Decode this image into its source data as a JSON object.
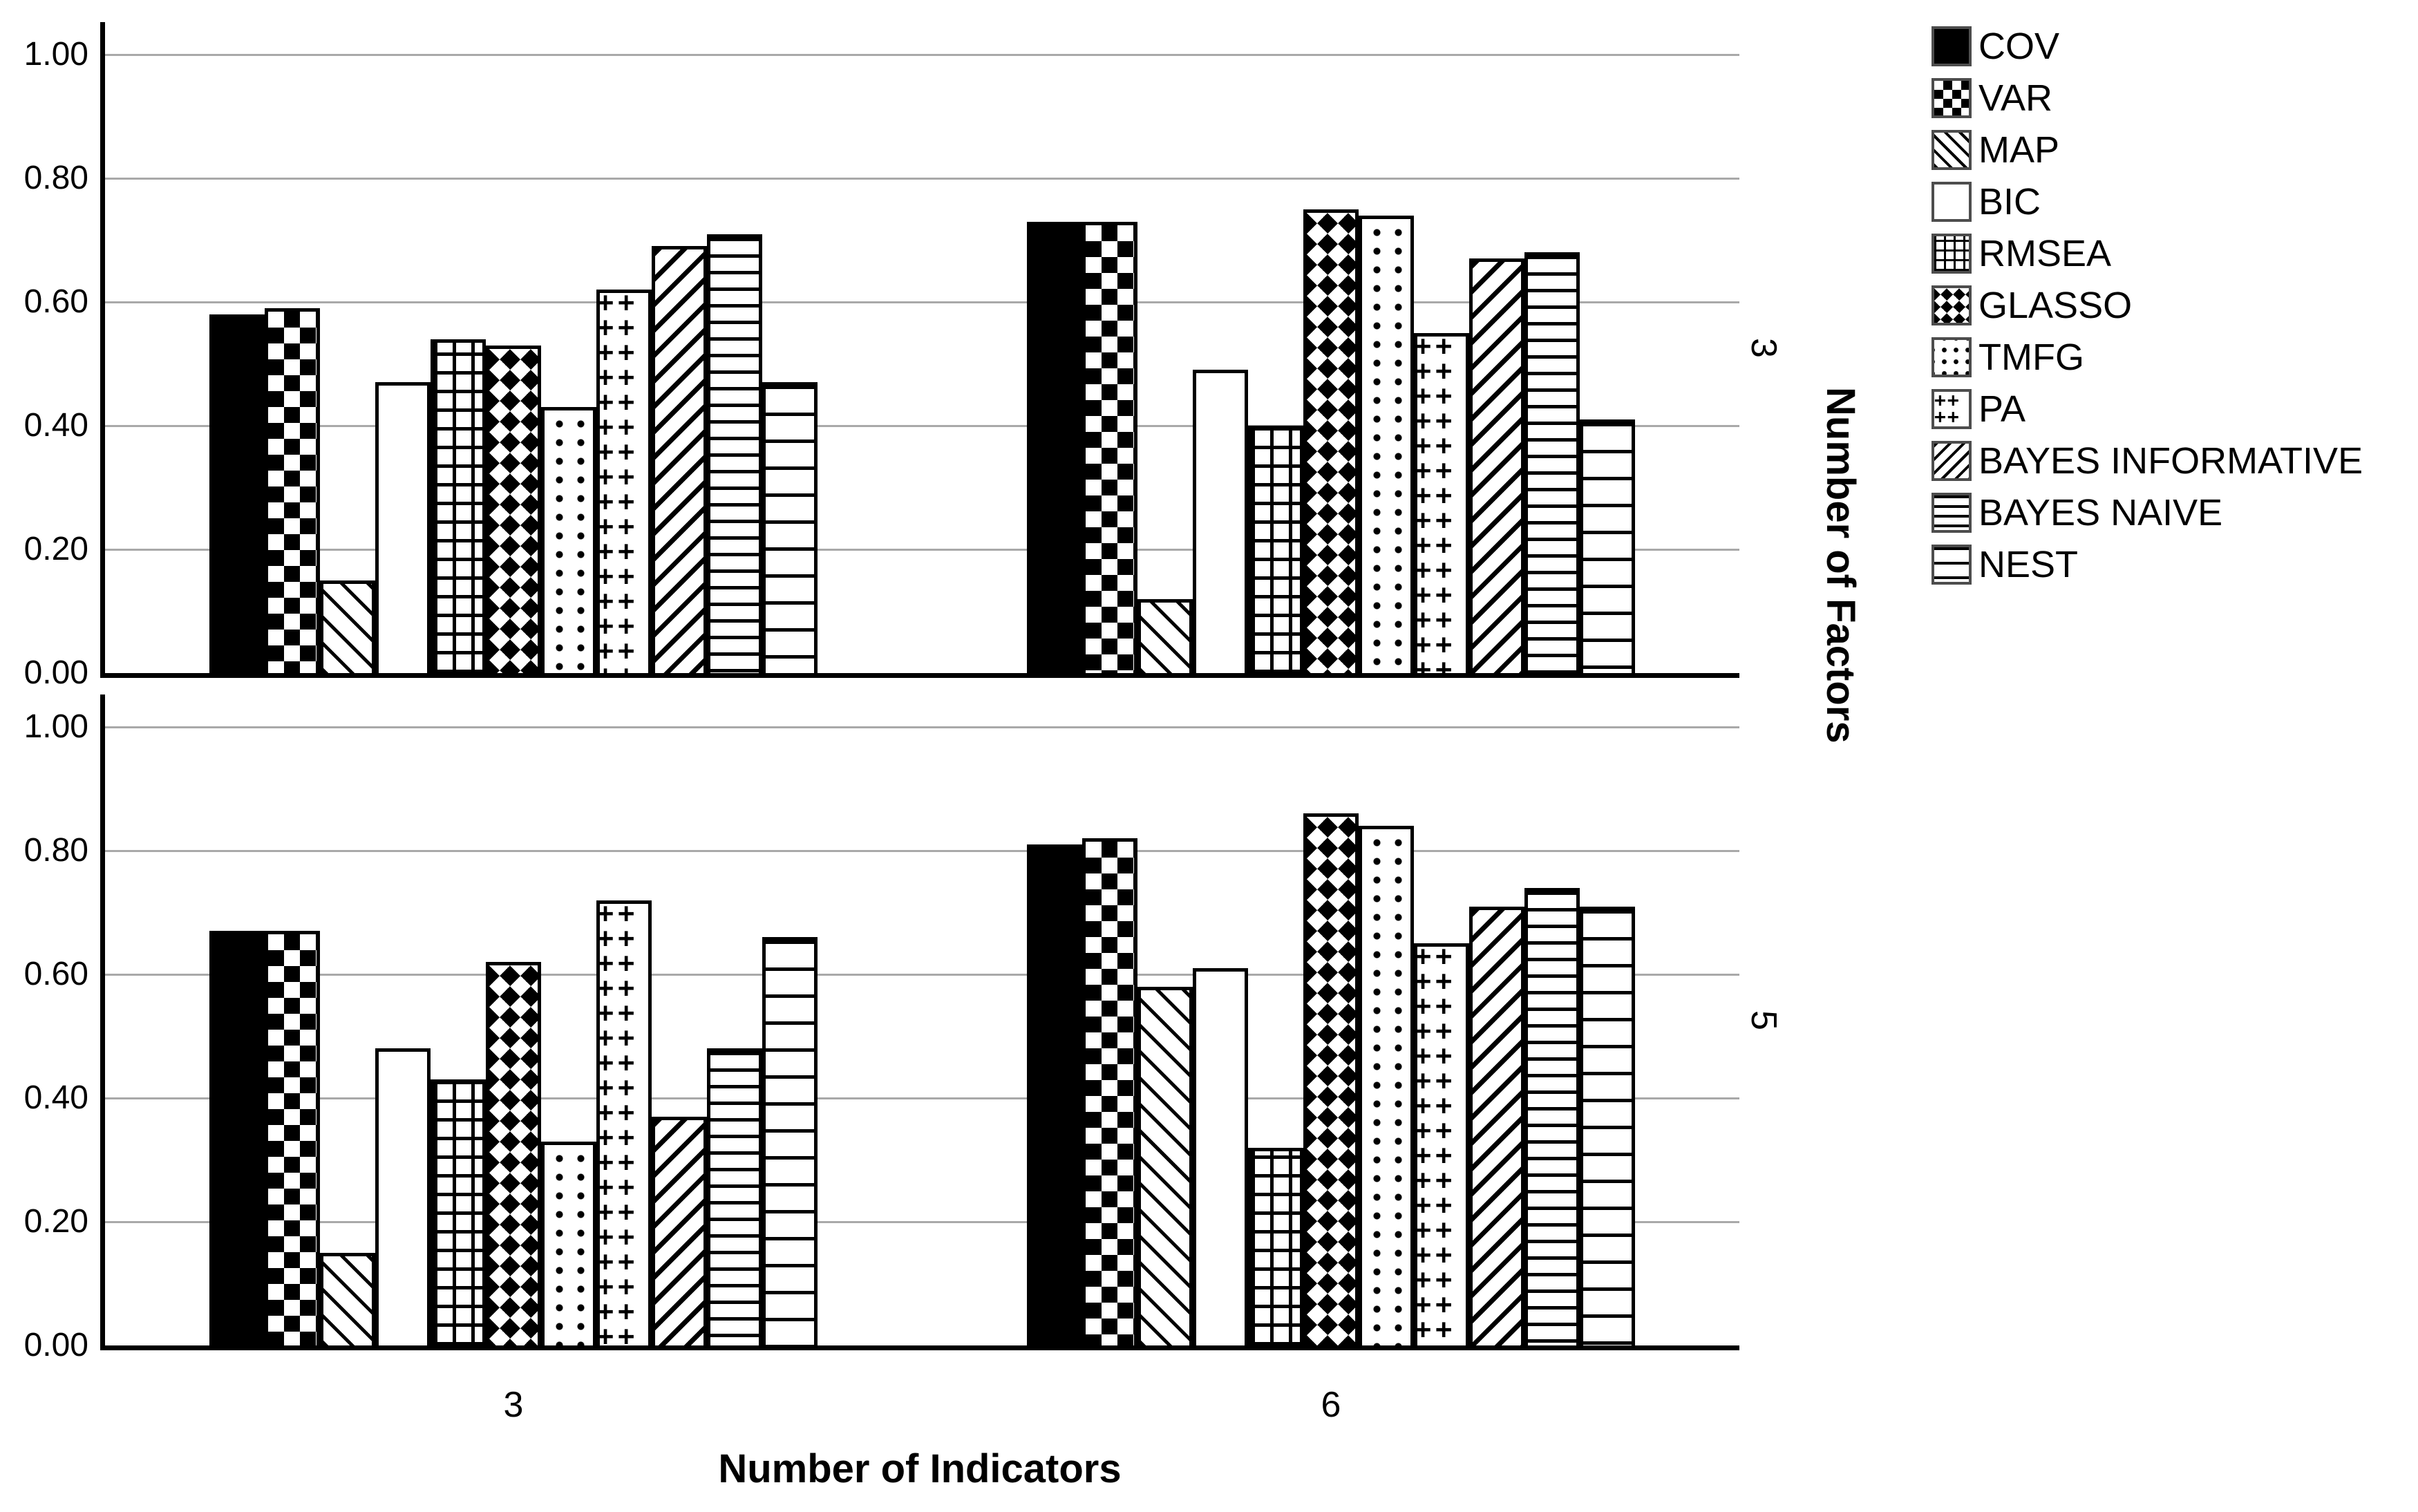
{
  "axes": {
    "y_ticks": [
      "1.00",
      "0.80",
      "0.60",
      "0.40",
      "0.20",
      "0.00"
    ],
    "x_categories": [
      "3",
      "6"
    ],
    "x_title": "Number of Indicators",
    "right_title": "Number of Factors",
    "facet_labels": [
      "3",
      "5"
    ]
  },
  "colors": {
    "foreground": "#000000",
    "background": "#ffffff",
    "gridline": "#a9a9a9"
  },
  "chart_data": {
    "type": "bar",
    "title": "",
    "xlabel": "Number of Indicators",
    "right_axis_label": "Number of Factors",
    "ylim": [
      0,
      1.05
    ],
    "yticks": [
      0,
      0.2,
      0.4,
      0.6,
      0.8,
      1.0
    ],
    "grid": true,
    "legend_position": "right",
    "x_categories": [
      "3",
      "6"
    ],
    "series": [
      {
        "name": "COV",
        "pattern": "solid"
      },
      {
        "name": "VAR",
        "pattern": "checker"
      },
      {
        "name": "MAP",
        "pattern": "diag-down"
      },
      {
        "name": "BIC",
        "pattern": "plain"
      },
      {
        "name": "RMSEA",
        "pattern": "grid"
      },
      {
        "name": "GLASSO",
        "pattern": "diamond"
      },
      {
        "name": "TMFG",
        "pattern": "dots"
      },
      {
        "name": "PA",
        "pattern": "plus"
      },
      {
        "name": "BAYES INFORMATIVE",
        "pattern": "diag-up"
      },
      {
        "name": "BAYES NAIVE",
        "pattern": "hlines-dense"
      },
      {
        "name": "NEST",
        "pattern": "hlines-sparse"
      }
    ],
    "facets": [
      {
        "label": "3",
        "groups": [
          {
            "category": "3",
            "values": [
              0.58,
              0.59,
              0.15,
              0.47,
              0.54,
              0.53,
              0.43,
              0.62,
              0.69,
              0.71,
              0.47
            ]
          },
          {
            "category": "6",
            "values": [
              0.73,
              0.73,
              0.12,
              0.49,
              0.4,
              0.75,
              0.74,
              0.55,
              0.67,
              0.68,
              0.41
            ]
          }
        ]
      },
      {
        "label": "5",
        "groups": [
          {
            "category": "3",
            "values": [
              0.67,
              0.67,
              0.15,
              0.48,
              0.43,
              0.62,
              0.33,
              0.72,
              0.37,
              0.48,
              0.66
            ]
          },
          {
            "category": "6",
            "values": [
              0.81,
              0.82,
              0.58,
              0.61,
              0.32,
              0.86,
              0.84,
              0.65,
              0.71,
              0.74,
              0.71
            ]
          }
        ]
      }
    ]
  }
}
